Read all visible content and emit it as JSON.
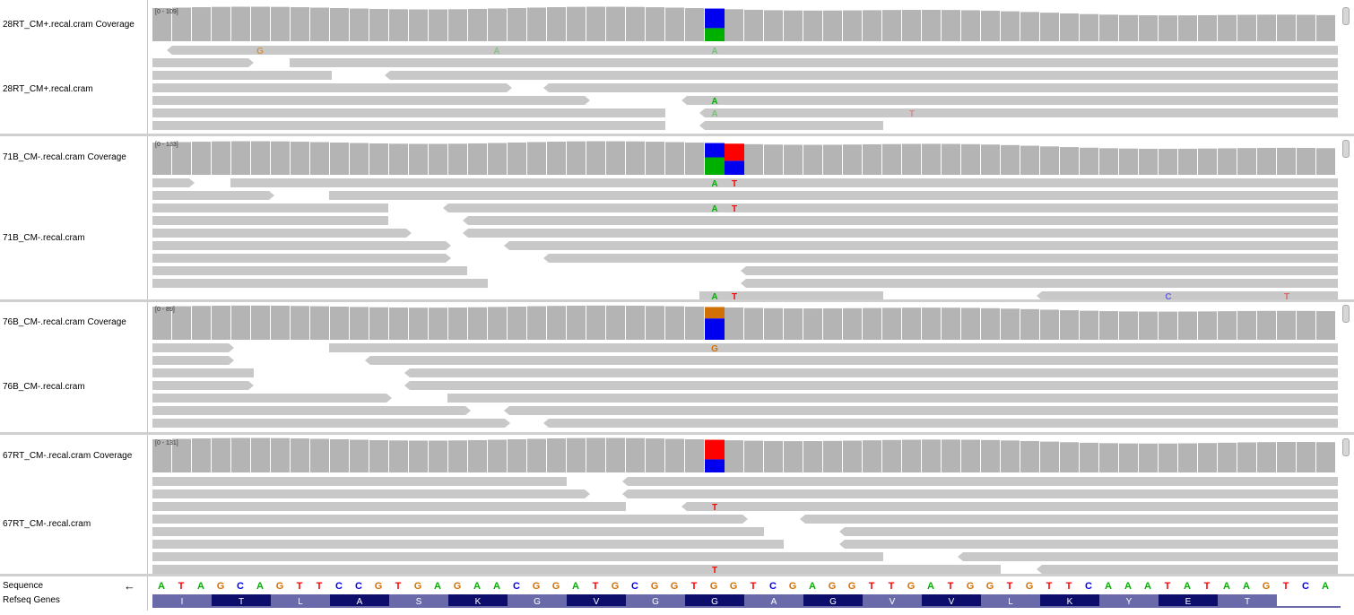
{
  "panels": [
    {
      "coverage_label": "28RT_CM+.recal.cram Coverage",
      "range": "[0 - 109]",
      "reads_label": "28RT_CM+.recal.cram"
    },
    {
      "coverage_label": "71B_CM-.recal.cram Coverage",
      "range": "[0 - 133]",
      "reads_label": "71B_CM-.recal.cram"
    },
    {
      "coverage_label": "76B_CM-.recal.cram Coverage",
      "range": "[0 - 89]",
      "reads_label": "76B_CM-.recal.cram"
    },
    {
      "coverage_label": "67RT_CM-.recal.cram Coverage",
      "range": "[0 - 131]",
      "reads_label": "67RT_CM-.recal.cram"
    }
  ],
  "sequence_label": "Sequence",
  "refseq_label": "Refseq Genes",
  "strand_arrow": "←",
  "sequence": "ATAGCAGTTCCGTGAGAACGGATGCGGTGGTCGAGGTTGATGGTGTTCAAATATAAGTCA",
  "amino_acids": [
    "I",
    "T",
    "L",
    "A",
    "S",
    "K",
    "G",
    "V",
    "G",
    "G",
    "A",
    "G",
    "V",
    "V",
    "L",
    "K",
    "Y",
    "E",
    "T"
  ],
  "mismatch_letters": {
    "p0": [
      "G",
      "A",
      "A",
      "A",
      "A",
      "T"
    ],
    "p1": [
      "A",
      "T",
      "A",
      "T",
      "A",
      "T",
      "C",
      "T"
    ],
    "p2": [
      "G"
    ],
    "p3": [
      "T",
      "T"
    ]
  },
  "colors": {
    "A": "#00b000",
    "C": "#0000f0",
    "G": "#d17105",
    "T": "#ff0000",
    "read": "#c8c8c8",
    "coverage": "#b4b4b4",
    "aa_dark": "#0d0d6b",
    "aa_light": "#6a6aaa"
  }
}
